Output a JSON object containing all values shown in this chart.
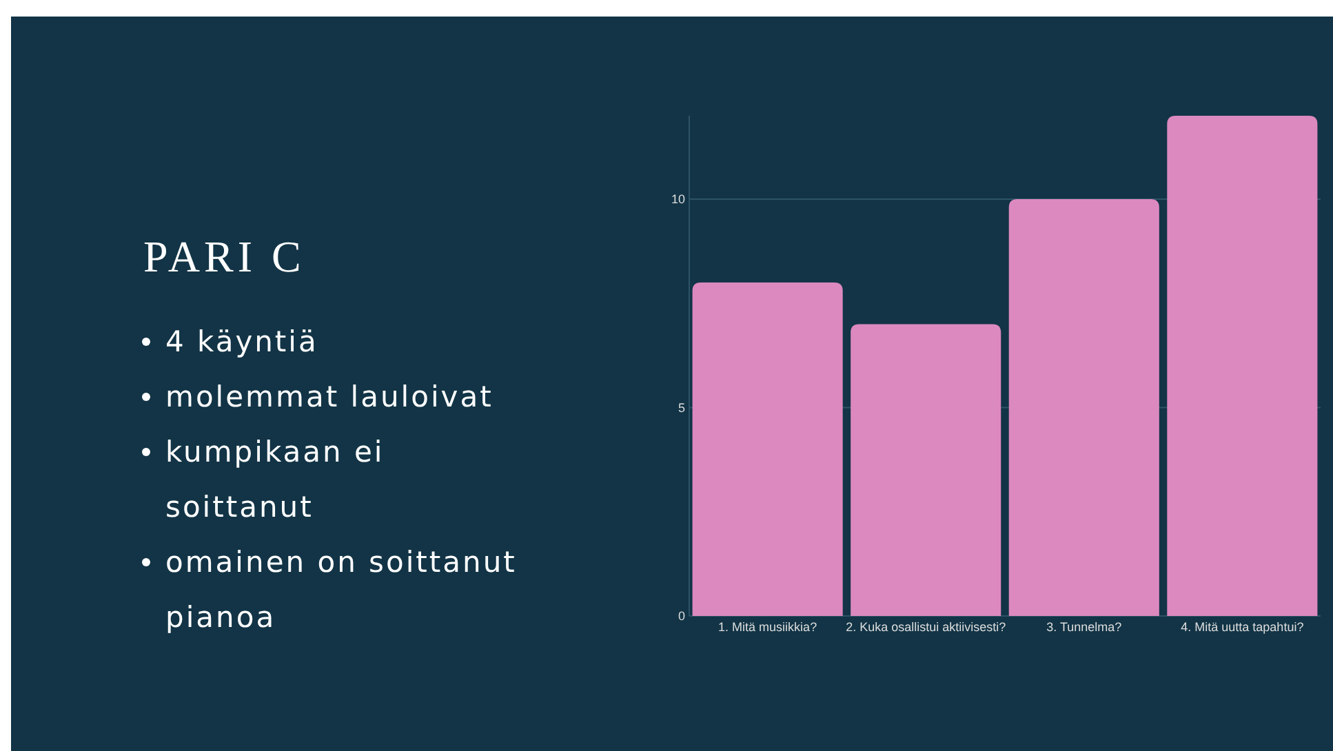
{
  "chart_data": {
    "type": "bar",
    "title": "PARI C",
    "annotations": [
      "4 käyntiä",
      "molemmat lauloivat",
      "kumpikaan ei soittanut",
      "omainen on soittanut pianoa"
    ],
    "categories": [
      "1. Mitä musiikkia?",
      "2. Kuka osallistui aktiivisesti?",
      "3. Tunnelma?",
      "4. Mitä uutta tapahtui?"
    ],
    "values": [
      8,
      7,
      10,
      12
    ],
    "color": "#dc89bf",
    "ylim": [
      0,
      12
    ],
    "yticks": [
      0,
      5,
      10
    ],
    "grid": "y"
  }
}
